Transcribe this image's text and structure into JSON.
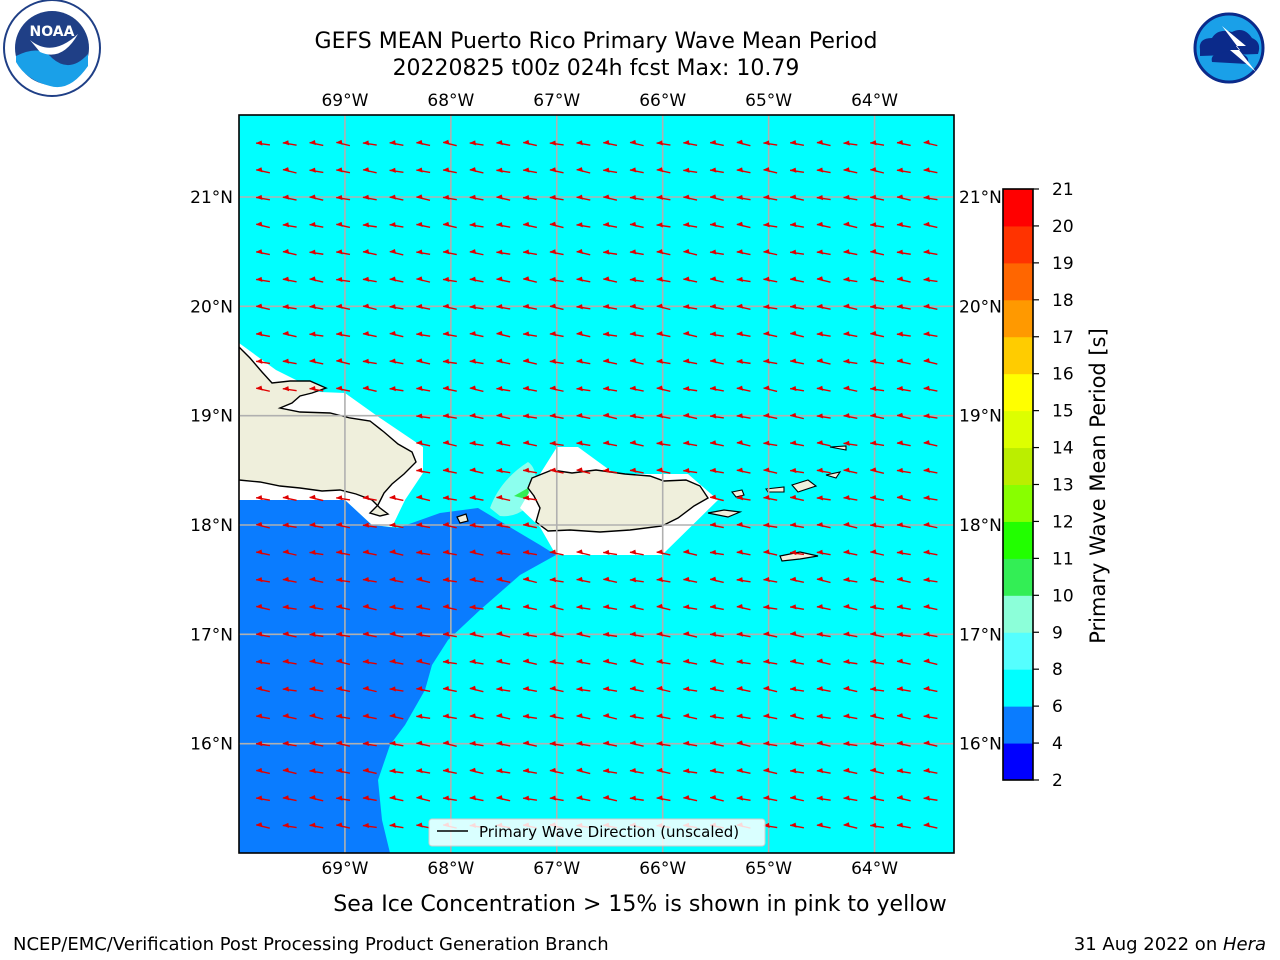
{
  "title": {
    "line1": "GEFS MEAN Puerto Rico Primary Wave Mean Period",
    "line2": "20220825 t00z 024h fcst   Max: 10.79"
  },
  "logos": {
    "left": {
      "icon": "noaa-logo-icon",
      "text": "NOAA",
      "ring_text": "NATIONAL OCEANIC AND ATMOSPHERIC ADMINISTRATION · U.S. DEPARTMENT OF COMMERCE"
    },
    "right": {
      "icon": "nws-logo-icon",
      "ring_text": "NATIONAL WEATHER SERVICE"
    }
  },
  "map": {
    "lon_range": [
      -70.0,
      -63.25
    ],
    "lat_range": [
      15.0,
      21.75
    ],
    "lon_ticks": [
      -69,
      -68,
      -67,
      -66,
      -65,
      -64
    ],
    "lon_tick_labels": [
      "69°W",
      "68°W",
      "67°W",
      "66°W",
      "65°W",
      "64°W"
    ],
    "lat_ticks": [
      16,
      17,
      18,
      19,
      20,
      21
    ],
    "lat_tick_labels": [
      "16°N",
      "17°N",
      "18°N",
      "19°N",
      "20°N",
      "21°N"
    ],
    "grid": true,
    "legend_label": "Primary Wave Direction (unscaled)",
    "legend_position": "bottom-center",
    "arrow_color": "#e00000",
    "arrow_direction": "toward-west-southwest",
    "field_colors": {
      "deep": "#0a7cff",
      "main": "#00ffff",
      "light": "#8cffee",
      "green": "#33ee55"
    }
  },
  "colorbar": {
    "label": "Primary Wave Mean Period [s]",
    "levels": [
      2,
      4,
      6,
      8,
      9,
      10,
      11,
      12,
      13,
      14,
      15,
      16,
      17,
      18,
      19,
      20,
      21
    ],
    "tick_labels": [
      "2",
      "4",
      "6",
      "8",
      "9",
      "10",
      "11",
      "12",
      "13",
      "14",
      "15",
      "16",
      "17",
      "18",
      "19",
      "20",
      "21"
    ],
    "colors": [
      "#0000ff",
      "#0a7cff",
      "#00ffff",
      "#55ffff",
      "#8cffd9",
      "#33ee55",
      "#22ff00",
      "#88ff00",
      "#bbee00",
      "#ddff00",
      "#ffff00",
      "#ffcc00",
      "#ff9900",
      "#ff6600",
      "#ff3300",
      "#ff0000"
    ]
  },
  "note": "Sea Ice Concentration > 15% is shown in pink to yellow",
  "footer": {
    "left": "NCEP/EMC/Verification Post Processing Product Generation Branch",
    "right_prefix": "31 Aug 2022 on ",
    "right_italic": "Hera"
  }
}
